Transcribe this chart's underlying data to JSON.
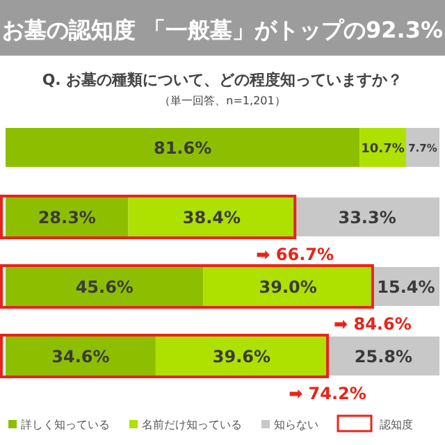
{
  "chart_data": {
    "type": "bar",
    "orientation": "horizontal",
    "stacked": true,
    "title": "お墓の認知度 「一般墓」がトップの92.3%",
    "subtitle": "Q. お墓の種類について、どの程度知っていますか？",
    "categories": [
      null,
      null,
      null,
      null
    ],
    "series": [
      {
        "name": "詳しく知っている",
        "color": "#8dbf00",
        "values": [
          81.6,
          28.3,
          45.6,
          34.6
        ],
        "value_labels": [
          "81.6%",
          "28.3%",
          "45.6%",
          "34.6%"
        ]
      },
      {
        "name": "名前だけ知っている",
        "color": "#aee000",
        "values": [
          10.7,
          38.4,
          39.0,
          39.6
        ],
        "value_labels": [
          "10.7%",
          "38.4%",
          "39.0%",
          "39.6%"
        ]
      },
      {
        "name": "知らない",
        "color": "#c8c8c8",
        "values": [
          7.7,
          33.3,
          15.4,
          25.8
        ],
        "value_labels": [
          "7.7%",
          "33.3%",
          "15.4%",
          "25.8%"
        ]
      }
    ],
    "legend": "bottom",
    "annotations": [
      "（単一回答、n=1,201）",
      "認知度",
      "➡ 66.7%",
      "➡ 84.6%",
      "➡ 74.2%"
    ]
  }
}
